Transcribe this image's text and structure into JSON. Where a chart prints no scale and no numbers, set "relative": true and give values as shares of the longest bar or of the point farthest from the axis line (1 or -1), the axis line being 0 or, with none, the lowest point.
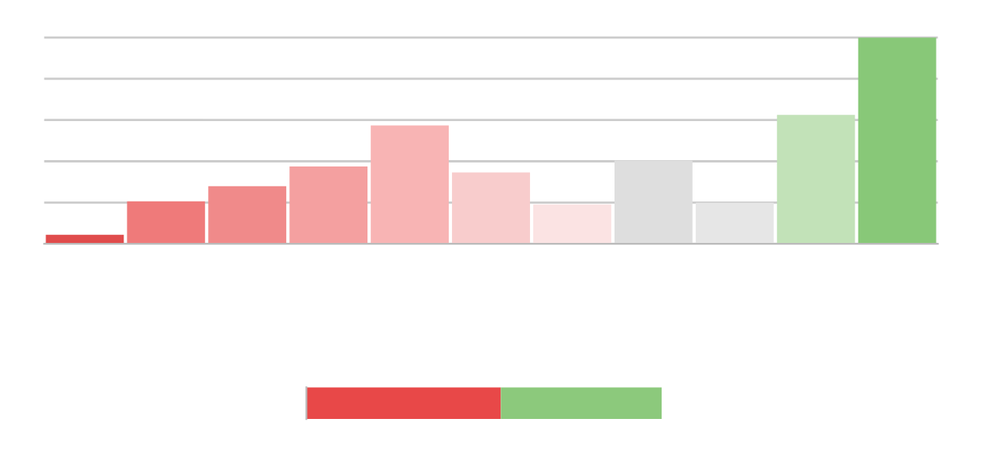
{
  "chart_data": [
    {
      "type": "bar",
      "relative": true,
      "grid": "y",
      "tick_labels": false,
      "categories": [
        null,
        null,
        null,
        null,
        null,
        null,
        null,
        null,
        null,
        null,
        null
      ],
      "values": [
        0.044,
        0.206,
        0.279,
        0.375,
        0.574,
        0.346,
        0.191,
        0.404,
        0.199,
        0.625,
        1.0
      ],
      "colors": [
        "#e04c4c",
        "#ef7a7a",
        "#f08a8a",
        "#f4a0a0",
        "#f8b4b4",
        "#f8cccc",
        "#fbe3e3",
        "#dedede",
        "#e6e6e6",
        "#c2e2b8",
        "#88c878"
      ]
    },
    {
      "type": "bar",
      "relative": true,
      "orientation": "horizontal",
      "stacked": true,
      "tick_labels": false,
      "categories": [
        null
      ],
      "series": [
        {
          "color": "#e84848",
          "values": [
            0.547
          ]
        },
        {
          "color": "#8cc97c",
          "values": [
            0.453
          ]
        }
      ]
    }
  ]
}
